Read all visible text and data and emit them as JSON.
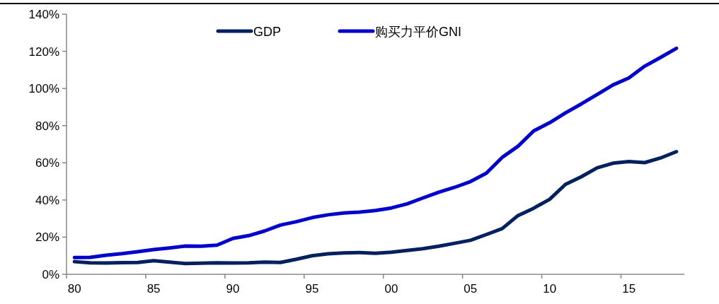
{
  "chart_data": {
    "type": "line",
    "categories": [
      "80",
      null,
      null,
      null,
      null,
      "85",
      null,
      null,
      null,
      null,
      "90",
      null,
      null,
      null,
      null,
      "95",
      null,
      null,
      null,
      null,
      "00",
      null,
      null,
      null,
      null,
      "05",
      null,
      null,
      null,
      null,
      "10",
      null,
      null,
      null,
      null,
      "15",
      null,
      null,
      null
    ],
    "series": [
      {
        "name": "GDP",
        "color": "#002060",
        "values": [
          6.8,
          6.2,
          6.1,
          6.3,
          6.4,
          7.3,
          6.6,
          5.8,
          6.0,
          6.2,
          6.1,
          6.2,
          6.6,
          6.4,
          8.1,
          10.0,
          11.0,
          11.5,
          11.7,
          11.3,
          11.9,
          12.8,
          13.8,
          15.1,
          16.7,
          18.3,
          21.4,
          24.6,
          31.6,
          35.6,
          40.4,
          48.4,
          52.5,
          57.3,
          59.8,
          60.7,
          60.1,
          62.6,
          66.0
        ]
      },
      {
        "name": "购买力平价GNI",
        "color": "#0000cc",
        "values": [
          9.0,
          9.1,
          10.3,
          11.1,
          12.2,
          13.3,
          14.2,
          15.2,
          15.1,
          15.7,
          19.3,
          20.8,
          23.3,
          26.5,
          28.3,
          30.5,
          32.0,
          33.0,
          33.5,
          34.3,
          35.7,
          37.9,
          41.1,
          44.2,
          46.8,
          49.9,
          54.4,
          62.9,
          68.9,
          77.2,
          81.6,
          86.9,
          91.7,
          96.8,
          101.9,
          105.7,
          112.0,
          116.7,
          121.6
        ]
      }
    ],
    "ylim": [
      0,
      140
    ],
    "yticks": [
      {
        "value": 0,
        "label": "0%"
      },
      {
        "value": 20,
        "label": "20%"
      },
      {
        "value": 40,
        "label": "40%"
      },
      {
        "value": 60,
        "label": "60%"
      },
      {
        "value": 80,
        "label": "80%"
      },
      {
        "value": 100,
        "label": "100%"
      },
      {
        "value": 120,
        "label": "120%"
      },
      {
        "value": 140,
        "label": "140%"
      }
    ],
    "legend": "top"
  }
}
